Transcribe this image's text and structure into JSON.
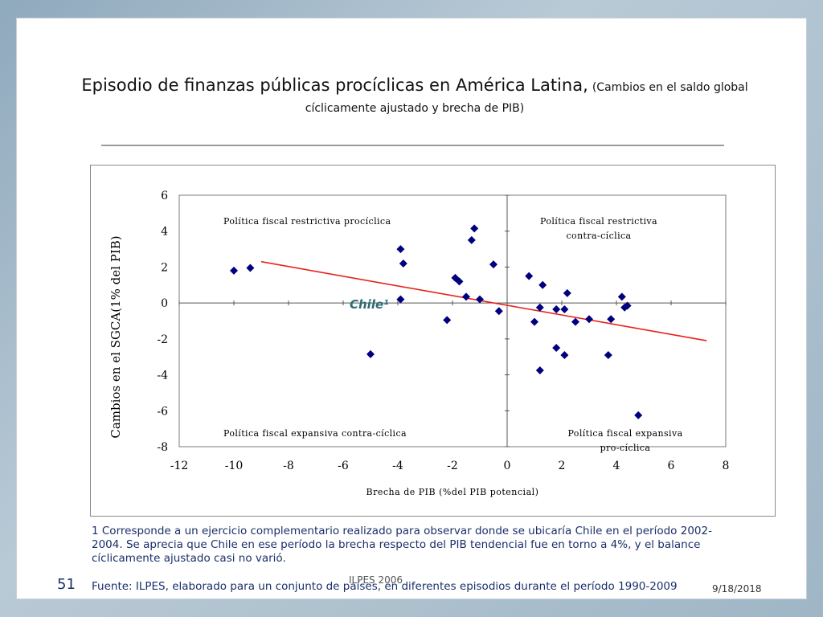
{
  "slide": {
    "title_main": "Episodio de finanzas públicas procíclicas en América Latina,",
    "title_sub_a": "(Cambios en el saldo global",
    "title_sub_b": "cíclicamente ajustado y brecha de PIB)",
    "footnote": "1 Corresponde a un ejercicio complementario realizado para observar donde se ubicaría Chile en el período 2002-2004. Se aprecia que Chile en ese período la brecha respecto del PIB tendencial fue en torno a 4%, y el balance cíclicamente ajustado casi no varió.",
    "source": "Fuente: ILPES, elaborado para un conjunto de países, en diferentes episodios durante el período 1990-2009",
    "slide_number": "51",
    "organization": "ILPES 2006",
    "date": "9/18/2018"
  },
  "chart_data": {
    "type": "scatter",
    "xlabel": "Brecha de PIB (%del PIB potencial)",
    "ylabel": "Cambios en el SGCA(1% del PIB)",
    "xlim": [
      -12,
      8
    ],
    "ylim": [
      -8,
      6
    ],
    "x_ticks": [
      "-12",
      "-10",
      "-8",
      "-6",
      "-4",
      "-2",
      "0",
      "2",
      "4",
      "6",
      "8"
    ],
    "y_ticks": [
      "6",
      "4",
      "2",
      "0",
      "-2",
      "-4",
      "-6",
      "-8"
    ],
    "grid": false,
    "quadrant_labels": {
      "top_left": "Política fiscal restrictiva procíclica",
      "top_right_a": "Política fiscal restrictiva",
      "top_right_b": "contra-cíclica",
      "bottom_left": "Política fiscal expansiva contra-cíclica",
      "bottom_right_a": "Política fiscal expansiva",
      "bottom_right_b": "pro-cíclica"
    },
    "annotation": "Chile¹",
    "marker_color": "#00007f",
    "trend_color": "#e8221b",
    "trend_line": {
      "x": [
        -9.0,
        7.3
      ],
      "y": [
        2.3,
        -2.1
      ]
    },
    "points": [
      {
        "x": -10.0,
        "y": 1.8
      },
      {
        "x": -9.4,
        "y": 1.95
      },
      {
        "x": -5.0,
        "y": -2.85
      },
      {
        "x": -3.9,
        "y": 3.0
      },
      {
        "x": -3.8,
        "y": 2.2
      },
      {
        "x": -3.9,
        "y": 0.2
      },
      {
        "x": -2.2,
        "y": -0.95
      },
      {
        "x": -1.9,
        "y": 1.4
      },
      {
        "x": -1.75,
        "y": 1.2
      },
      {
        "x": -1.5,
        "y": 0.35
      },
      {
        "x": -1.3,
        "y": 3.5
      },
      {
        "x": -1.2,
        "y": 4.15
      },
      {
        "x": -1.0,
        "y": 0.2
      },
      {
        "x": -0.5,
        "y": 2.15
      },
      {
        "x": -0.3,
        "y": -0.45
      },
      {
        "x": 0.8,
        "y": 1.5
      },
      {
        "x": 1.0,
        "y": -1.05
      },
      {
        "x": 1.2,
        "y": -0.25
      },
      {
        "x": 1.3,
        "y": 1.0
      },
      {
        "x": 1.2,
        "y": -3.75
      },
      {
        "x": 1.8,
        "y": -0.35
      },
      {
        "x": 1.8,
        "y": -2.5
      },
      {
        "x": 2.1,
        "y": -0.35
      },
      {
        "x": 2.1,
        "y": -2.9
      },
      {
        "x": 2.2,
        "y": 0.55
      },
      {
        "x": 2.5,
        "y": -1.05
      },
      {
        "x": 3.0,
        "y": -0.9
      },
      {
        "x": 3.7,
        "y": -2.9
      },
      {
        "x": 3.8,
        "y": -0.9
      },
      {
        "x": 4.2,
        "y": 0.35
      },
      {
        "x": 4.3,
        "y": -0.25
      },
      {
        "x": 4.4,
        "y": -0.15
      },
      {
        "x": 4.8,
        "y": -6.25
      }
    ]
  }
}
